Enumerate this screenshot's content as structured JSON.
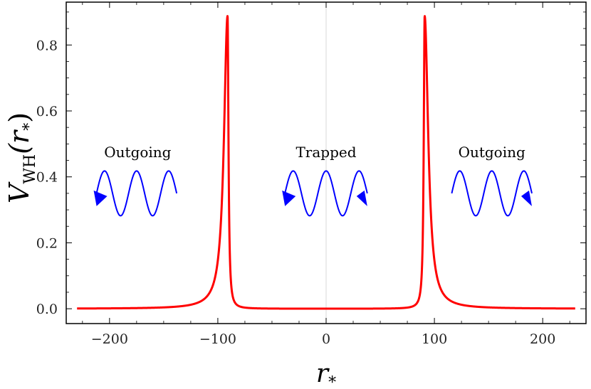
{
  "chart_data": {
    "type": "line",
    "title": "",
    "xlabel": "r",
    "xlabel_sub": "*",
    "ylabel": "V",
    "ylabel_sub": "WH",
    "ylabel_arg": "(r",
    "ylabel_arg_sub": "*",
    "ylabel_close": ")",
    "xlim": [
      -240,
      240
    ],
    "ylim": [
      -0.045,
      0.93
    ],
    "xticks": [
      -200,
      -100,
      0,
      100,
      200
    ],
    "xtick_labels": [
      "−200",
      "−100",
      "0",
      "100",
      "200"
    ],
    "yticks": [
      0.0,
      0.2,
      0.4,
      0.6,
      0.8
    ],
    "ytick_labels": [
      "0.0",
      "0.2",
      "0.4",
      "0.6",
      "0.8"
    ],
    "grid": false,
    "center_line": true,
    "series": [
      {
        "color": "#ff0000",
        "peaks": [
          {
            "x": -91,
            "height": 0.888
          },
          {
            "x": 91,
            "height": 0.888
          }
        ],
        "x_range": [
          -230,
          230
        ],
        "outer_width": 4.0,
        "inner_width": 1.0
      }
    ],
    "annotations": [
      {
        "text": "Outgoing",
        "x": -174,
        "y": 0.46,
        "wave_from": -212,
        "wave_to": -138,
        "arrows": [
          "left"
        ]
      },
      {
        "text": "Trapped",
        "x": 0,
        "y": 0.46,
        "wave_from": -38,
        "wave_to": 38,
        "arrows": [
          "left",
          "right"
        ]
      },
      {
        "text": "Outgoing",
        "x": 153,
        "y": 0.46,
        "wave_from": 116,
        "wave_to": 190,
        "arrows": [
          "right"
        ]
      }
    ],
    "wave_color": "#0000ff",
    "wave_center_y": 0.35,
    "wave_amplitude": 0.068
  }
}
